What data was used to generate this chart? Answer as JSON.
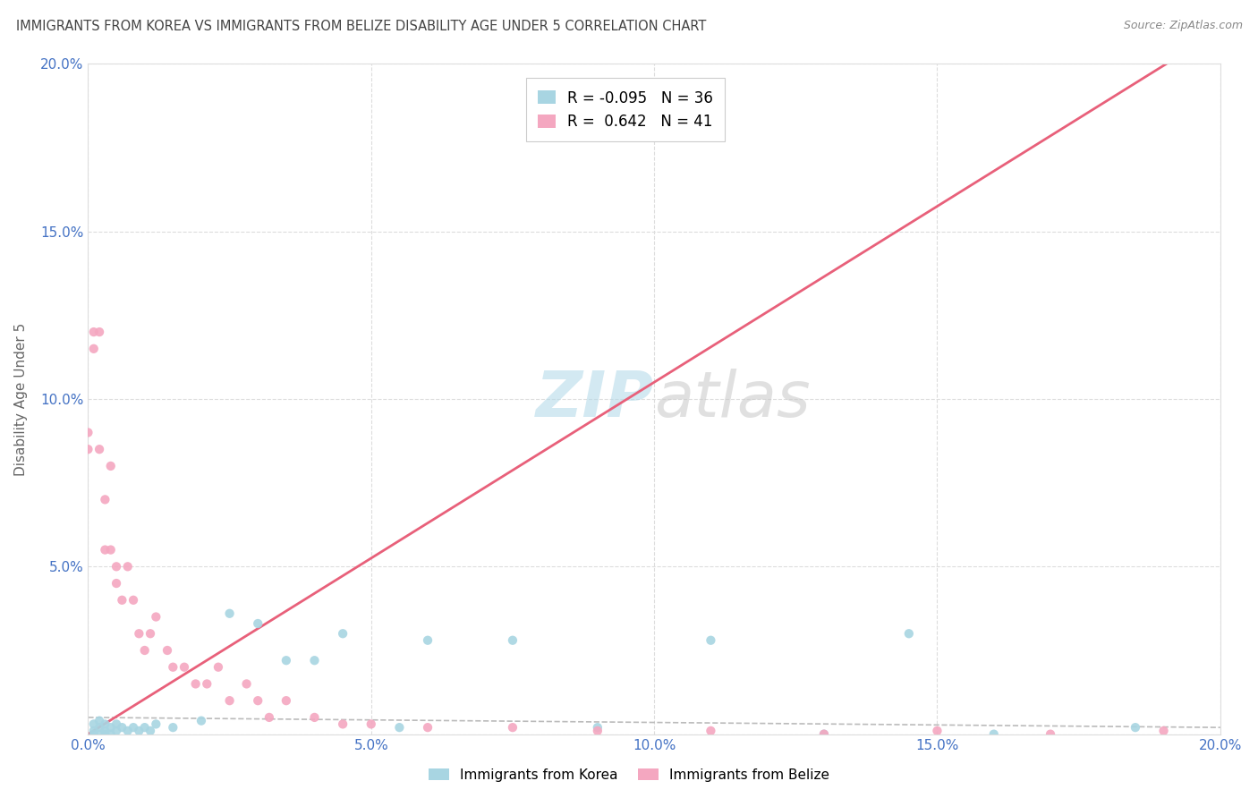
{
  "title": "IMMIGRANTS FROM KOREA VS IMMIGRANTS FROM BELIZE DISABILITY AGE UNDER 5 CORRELATION CHART",
  "source": "Source: ZipAtlas.com",
  "ylabel": "Disability Age Under 5",
  "xlim": [
    0.0,
    0.2
  ],
  "ylim": [
    0.0,
    0.2
  ],
  "xtick_vals": [
    0.0,
    0.05,
    0.1,
    0.15,
    0.2
  ],
  "ytick_vals": [
    0.0,
    0.05,
    0.1,
    0.15,
    0.2
  ],
  "korea_R": -0.095,
  "korea_N": 36,
  "belize_R": 0.642,
  "belize_N": 41,
  "korea_color": "#A8D5E2",
  "belize_color": "#F4A7C0",
  "korea_line_color": "#aaaaaa",
  "belize_line_color": "#E8607A",
  "watermark_zip": "ZIP",
  "watermark_atlas": "atlas",
  "background_color": "#FFFFFF",
  "korea_R_label": "R = -0.095",
  "korea_N_label": "N = 36",
  "belize_R_label": "R =  0.642",
  "belize_N_label": "N = 41",
  "scatter_korea_x": [
    0.001,
    0.001,
    0.001,
    0.002,
    0.002,
    0.002,
    0.003,
    0.003,
    0.003,
    0.004,
    0.004,
    0.005,
    0.005,
    0.006,
    0.007,
    0.008,
    0.009,
    0.01,
    0.011,
    0.012,
    0.015,
    0.02,
    0.025,
    0.03,
    0.035,
    0.04,
    0.045,
    0.055,
    0.06,
    0.075,
    0.09,
    0.11,
    0.13,
    0.145,
    0.16,
    0.185
  ],
  "scatter_korea_y": [
    0.001,
    0.003,
    0.0,
    0.002,
    0.0,
    0.004,
    0.001,
    0.0,
    0.003,
    0.002,
    0.0,
    0.003,
    0.001,
    0.002,
    0.001,
    0.002,
    0.001,
    0.002,
    0.001,
    0.003,
    0.002,
    0.004,
    0.036,
    0.033,
    0.022,
    0.022,
    0.03,
    0.002,
    0.028,
    0.028,
    0.002,
    0.028,
    0.0,
    0.03,
    0.0,
    0.002
  ],
  "scatter_belize_x": [
    0.0,
    0.0,
    0.001,
    0.001,
    0.002,
    0.002,
    0.003,
    0.003,
    0.004,
    0.004,
    0.005,
    0.005,
    0.006,
    0.007,
    0.008,
    0.009,
    0.01,
    0.011,
    0.012,
    0.014,
    0.015,
    0.017,
    0.019,
    0.021,
    0.023,
    0.025,
    0.028,
    0.03,
    0.032,
    0.035,
    0.04,
    0.045,
    0.05,
    0.06,
    0.075,
    0.09,
    0.11,
    0.13,
    0.15,
    0.17,
    0.19
  ],
  "scatter_belize_y": [
    0.085,
    0.09,
    0.115,
    0.12,
    0.12,
    0.085,
    0.055,
    0.07,
    0.08,
    0.055,
    0.045,
    0.05,
    0.04,
    0.05,
    0.04,
    0.03,
    0.025,
    0.03,
    0.035,
    0.025,
    0.02,
    0.02,
    0.015,
    0.015,
    0.02,
    0.01,
    0.015,
    0.01,
    0.005,
    0.01,
    0.005,
    0.003,
    0.003,
    0.002,
    0.002,
    0.001,
    0.001,
    0.0,
    0.001,
    0.0,
    0.001
  ],
  "korea_trend_x": [
    0.0,
    0.2
  ],
  "korea_trend_y": [
    0.005,
    0.002
  ],
  "belize_trend_x": [
    0.0,
    0.2
  ],
  "belize_trend_y_start": 0.0,
  "belize_trend_slope": 1.05
}
